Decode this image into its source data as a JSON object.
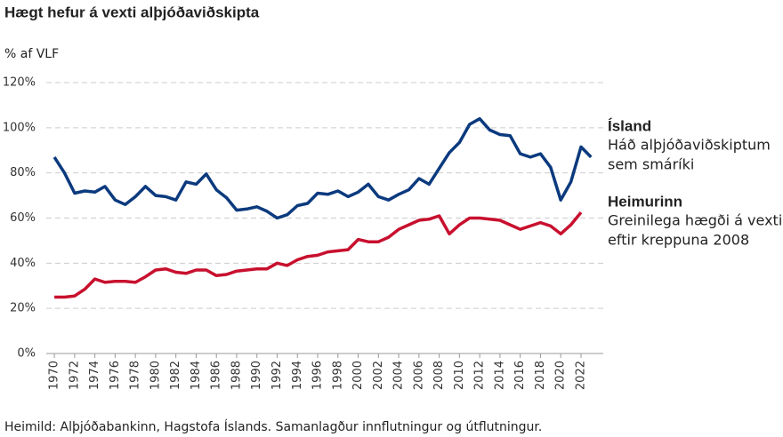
{
  "chart_data": {
    "type": "line",
    "title": "Hægt hefur á vexti alþjóðaviðskipta",
    "y_label": "% af VLF",
    "source": "Heimild: Alþjóðabankinn, Hagstofa Íslands. Samanlagður innflutningur og útflutningur.",
    "x": [
      1970,
      1971,
      1972,
      1973,
      1974,
      1975,
      1976,
      1977,
      1978,
      1979,
      1980,
      1981,
      1982,
      1983,
      1984,
      1985,
      1986,
      1987,
      1988,
      1989,
      1990,
      1991,
      1992,
      1993,
      1994,
      1995,
      1996,
      1997,
      1998,
      1999,
      2000,
      2001,
      2002,
      2003,
      2004,
      2005,
      2006,
      2007,
      2008,
      2009,
      2010,
      2011,
      2012,
      2013,
      2014,
      2015,
      2016,
      2017,
      2018,
      2019,
      2020,
      2021,
      2022,
      2023
    ],
    "series": [
      {
        "name": "Ísland",
        "color": "#0b3a7e",
        "label_lines": [
          "Háð alþjóðaviðskiptum",
          "sem smáríki"
        ],
        "values": [
          87,
          80,
          71,
          72,
          71.5,
          74,
          68,
          66,
          69.5,
          74,
          70,
          69.5,
          68,
          76,
          75,
          79.5,
          72.5,
          69,
          63.5,
          64,
          65,
          63,
          60,
          61.5,
          65.5,
          66.5,
          71,
          70.5,
          72,
          69.5,
          71.5,
          75,
          69.5,
          68,
          70.5,
          72.5,
          77.5,
          75,
          82,
          89,
          93.5,
          101.5,
          104,
          99,
          97,
          96.5,
          88.5,
          87,
          88.5,
          82.5,
          68,
          76,
          91.5,
          87
        ]
      },
      {
        "name": "Heimurinn",
        "color": "#c8102e",
        "label_lines": [
          "Greinilega hægði á vexti",
          "eftir kreppuna 2008"
        ],
        "values": [
          25,
          25,
          25.5,
          28.5,
          33,
          31.5,
          32,
          32,
          31.5,
          34,
          37,
          37.5,
          36,
          35.5,
          37,
          37,
          34.5,
          35,
          36.5,
          37,
          37.5,
          37.5,
          40,
          39,
          41.5,
          43,
          43.5,
          45,
          45.5,
          46,
          50.5,
          49.5,
          49.5,
          51.5,
          55,
          57,
          59,
          59.5,
          61,
          53,
          57,
          60,
          60,
          59.5,
          59,
          57,
          55,
          56.5,
          58,
          56.5,
          53,
          57,
          62.5,
          null
        ]
      }
    ],
    "xlim": [
      1969.2,
      2024.2
    ],
    "xticks": [
      1970,
      1972,
      1974,
      1976,
      1978,
      1980,
      1982,
      1984,
      1986,
      1988,
      1990,
      1992,
      1994,
      1996,
      1998,
      2000,
      2002,
      2004,
      2006,
      2008,
      2010,
      2012,
      2014,
      2016,
      2018,
      2020,
      2022
    ],
    "ylim": [
      0,
      120
    ],
    "yticks": [
      {
        "value": 0,
        "label": "0%"
      },
      {
        "value": 20,
        "label": "20%"
      },
      {
        "value": 40,
        "label": "40%"
      },
      {
        "value": 60,
        "label": "60%"
      },
      {
        "value": 80,
        "label": "80%"
      },
      {
        "value": 100,
        "label": "100%"
      },
      {
        "value": 120,
        "label": "120%"
      }
    ],
    "grid": true
  }
}
